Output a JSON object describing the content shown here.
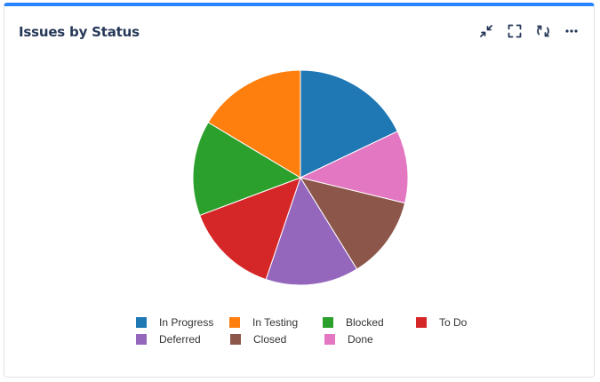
{
  "widget": {
    "title": "Issues by Status",
    "toolbar": [
      {
        "icon": "minimize-icon",
        "label": "Minimize"
      },
      {
        "icon": "fullscreen-icon",
        "label": "Fullscreen"
      },
      {
        "icon": "refresh-icon",
        "label": "Refresh"
      },
      {
        "icon": "more-icon",
        "label": "More"
      }
    ]
  },
  "chart_data": {
    "type": "pie",
    "title": "Issues by Status",
    "slices": [
      {
        "label": "In Progress",
        "value": 17.9,
        "color": "#1f77b4"
      },
      {
        "label": "Done",
        "value": 10.9,
        "color": "#e377c2"
      },
      {
        "label": "Closed",
        "value": 12.4,
        "color": "#8c564b"
      },
      {
        "label": "Deferred",
        "value": 14.0,
        "color": "#9467bd"
      },
      {
        "label": "To Do",
        "value": 14.1,
        "color": "#d62728"
      },
      {
        "label": "Blocked",
        "value": 14.3,
        "color": "#2ca02c"
      },
      {
        "label": "In Testing",
        "value": 16.4,
        "color": "#ff7f0e"
      }
    ],
    "legend": {
      "placement": "bottom",
      "rows": [
        [
          "In Progress",
          "In Testing",
          "Blocked",
          "To Do"
        ],
        [
          "Deferred",
          "Closed",
          "Done"
        ]
      ]
    }
  }
}
